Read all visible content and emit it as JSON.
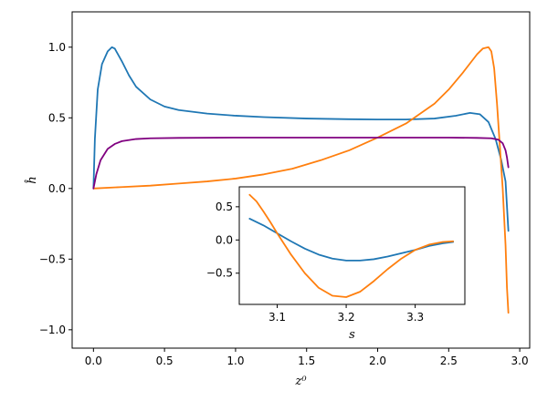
{
  "chart_data": [
    {
      "type": "line",
      "xlabel": "z⁰",
      "ylabel": "ĥ",
      "xlim": [
        -0.15,
        3.07
      ],
      "ylim": [
        -1.13,
        1.25
      ],
      "xticks": [
        0.0,
        0.5,
        1.0,
        1.5,
        2.0,
        2.5,
        3.0
      ],
      "xtick_labels": [
        "0.0",
        "0.5",
        "1.0",
        "1.5",
        "2.0",
        "2.5",
        "3.0"
      ],
      "yticks": [
        -1.0,
        -0.5,
        0.0,
        0.5,
        1.0
      ],
      "ytick_labels": [
        "−1.0",
        "−0.5",
        "0.0",
        "0.5",
        "1.0"
      ],
      "grid": false,
      "series": [
        {
          "color": "#1f77b4",
          "x": [
            0.0,
            0.01,
            0.03,
            0.06,
            0.1,
            0.13,
            0.15,
            0.2,
            0.25,
            0.3,
            0.4,
            0.5,
            0.6,
            0.8,
            1.0,
            1.2,
            1.5,
            1.8,
            2.0,
            2.2,
            2.4,
            2.55,
            2.65,
            2.72,
            2.78,
            2.83,
            2.87,
            2.9,
            2.92
          ],
          "y": [
            0.0,
            0.35,
            0.7,
            0.88,
            0.97,
            1.0,
            0.99,
            0.9,
            0.8,
            0.72,
            0.63,
            0.58,
            0.555,
            0.53,
            0.515,
            0.505,
            0.495,
            0.49,
            0.488,
            0.488,
            0.495,
            0.515,
            0.535,
            0.525,
            0.47,
            0.35,
            0.2,
            0.05,
            -0.3
          ]
        },
        {
          "color": "#ff7f0e",
          "x": [
            0.0,
            0.2,
            0.4,
            0.6,
            0.8,
            1.0,
            1.2,
            1.4,
            1.6,
            1.8,
            2.0,
            2.2,
            2.4,
            2.5,
            2.6,
            2.7,
            2.74,
            2.78,
            2.8,
            2.82,
            2.84,
            2.86,
            2.88,
            2.9,
            2.91,
            2.92
          ],
          "y": [
            0.0,
            0.01,
            0.02,
            0.035,
            0.05,
            0.07,
            0.1,
            0.14,
            0.2,
            0.27,
            0.36,
            0.46,
            0.6,
            0.7,
            0.82,
            0.95,
            0.99,
            1.0,
            0.97,
            0.85,
            0.6,
            0.3,
            0.0,
            -0.4,
            -0.7,
            -0.88
          ]
        },
        {
          "color": "#800080",
          "x": [
            0.0,
            0.02,
            0.05,
            0.1,
            0.15,
            0.2,
            0.3,
            0.4,
            0.6,
            1.0,
            1.5,
            2.0,
            2.5,
            2.7,
            2.8,
            2.85,
            2.88,
            2.9,
            2.91,
            2.92
          ],
          "y": [
            0.0,
            0.1,
            0.2,
            0.28,
            0.315,
            0.335,
            0.35,
            0.355,
            0.358,
            0.36,
            0.36,
            0.36,
            0.36,
            0.358,
            0.355,
            0.345,
            0.32,
            0.27,
            0.22,
            0.15
          ]
        }
      ]
    },
    {
      "type": "line",
      "inset": true,
      "xlabel": "s",
      "ylabel": "",
      "xlim": [
        3.045,
        3.372
      ],
      "ylim": [
        -0.97,
        0.8
      ],
      "xticks": [
        3.1,
        3.2,
        3.3
      ],
      "xtick_labels": [
        "3.1",
        "3.2",
        "3.3"
      ],
      "yticks": [
        -0.5,
        0.0,
        0.5
      ],
      "ytick_labels": [
        "−0.5",
        "0.0",
        "0.5"
      ],
      "grid": false,
      "series": [
        {
          "color": "#1f77b4",
          "x": [
            3.06,
            3.08,
            3.1,
            3.12,
            3.14,
            3.16,
            3.18,
            3.2,
            3.22,
            3.24,
            3.26,
            3.28,
            3.3,
            3.32,
            3.34,
            3.355
          ],
          "y": [
            0.32,
            0.22,
            0.1,
            -0.02,
            -0.13,
            -0.22,
            -0.28,
            -0.31,
            -0.31,
            -0.29,
            -0.25,
            -0.2,
            -0.15,
            -0.09,
            -0.05,
            -0.03
          ]
        },
        {
          "color": "#ff7f0e",
          "x": [
            3.06,
            3.07,
            3.08,
            3.09,
            3.1,
            3.12,
            3.14,
            3.16,
            3.18,
            3.2,
            3.22,
            3.24,
            3.26,
            3.28,
            3.3,
            3.32,
            3.34,
            3.355
          ],
          "y": [
            0.68,
            0.58,
            0.43,
            0.27,
            0.1,
            -0.22,
            -0.5,
            -0.72,
            -0.84,
            -0.86,
            -0.78,
            -0.62,
            -0.44,
            -0.28,
            -0.15,
            -0.07,
            -0.03,
            -0.02
          ]
        }
      ]
    }
  ]
}
